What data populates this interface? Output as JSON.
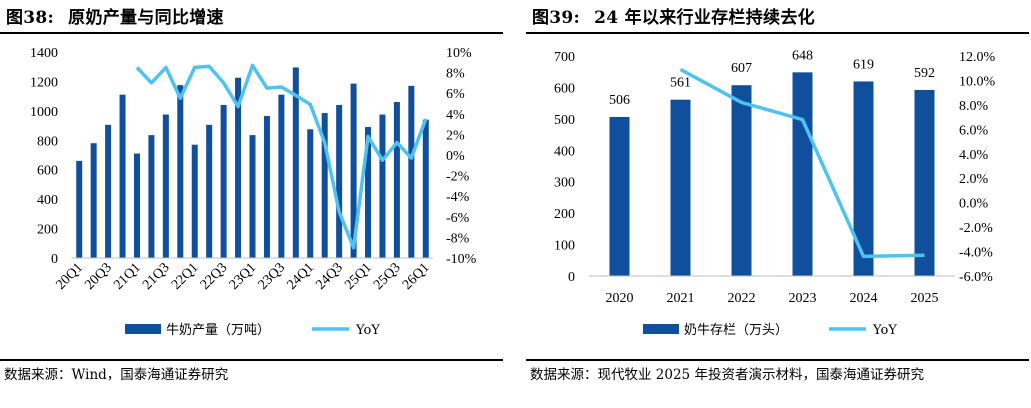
{
  "left": {
    "fig_num": "图38:",
    "title": "原奶产量与同比增速",
    "source": "数据来源：Wind，国泰海通证券研究",
    "legend_bar": "牛奶产量（万吨）",
    "legend_line": "YoY"
  },
  "right": {
    "fig_num": "图39:",
    "title": "24 年以来行业存栏持续去化",
    "source": "数据来源：现代牧业 2025 年投资者演示材料，国泰海通证券研究",
    "legend_bar": "奶牛存栏（万头）",
    "legend_line": "YoY"
  },
  "colors": {
    "bar": "#0f4f9c",
    "line": "#4fc3f0"
  },
  "chart_data": [
    {
      "type": "bar",
      "title": "原奶产量与同比增速",
      "x": [
        "20Q1",
        "20Q2",
        "20Q3",
        "20Q4",
        "21Q1",
        "21Q2",
        "21Q3",
        "21Q4",
        "22Q1",
        "22Q2",
        "22Q3",
        "22Q4",
        "23Q1",
        "23Q2",
        "23Q3",
        "23Q4",
        "24Q1",
        "24Q2",
        "24Q3",
        "24Q4",
        "25Q1",
        "25Q2",
        "25Q3",
        "25Q4",
        "26Q1"
      ],
      "x_tick_labels": [
        "20Q1",
        "20Q3",
        "21Q1",
        "21Q3",
        "22Q1",
        "22Q3",
        "23Q1",
        "23Q3",
        "24Q1",
        "24Q3",
        "25Q1",
        "25Q3",
        "26Q1"
      ],
      "series": [
        {
          "name": "牛奶产量（万吨）",
          "axis": "left",
          "values": [
            660,
            780,
            905,
            1110,
            710,
            835,
            975,
            1175,
            770,
            905,
            1040,
            1225,
            835,
            965,
            1110,
            1295,
            875,
            985,
            1040,
            1185,
            890,
            975,
            1060,
            1170,
            940
          ]
        },
        {
          "name": "YoY",
          "axis": "right",
          "unit": "%",
          "values": [
            null,
            null,
            null,
            null,
            8.5,
            7.0,
            8.5,
            5.5,
            8.5,
            8.6,
            7.0,
            4.7,
            8.7,
            6.5,
            6.6,
            5.8,
            4.9,
            1.2,
            -5.5,
            -9.0,
            1.8,
            -0.5,
            1.2,
            -0.3,
            3.5
          ]
        }
      ],
      "y_left": {
        "ylim": [
          0,
          1400
        ],
        "ticks": [
          0,
          200,
          400,
          600,
          800,
          1000,
          1200,
          1400
        ]
      },
      "y_right": {
        "ylim": [
          -10,
          10
        ],
        "ticks": [
          "10%",
          "8%",
          "6%",
          "4%",
          "2%",
          "0%",
          "-2%",
          "-4%",
          "-6%",
          "-8%",
          "-10%"
        ]
      },
      "legend": "bottom",
      "grid": false
    },
    {
      "type": "bar",
      "title": "24 年以来行业存栏持续去化",
      "x": [
        "2020",
        "2021",
        "2022",
        "2023",
        "2024",
        "2025"
      ],
      "series": [
        {
          "name": "奶牛存栏（万头）",
          "axis": "left",
          "values": [
            506,
            561,
            607,
            648,
            619,
            592
          ],
          "data_labels": [
            "506",
            "561",
            "607",
            "648",
            "619",
            "592"
          ]
        },
        {
          "name": "YoY",
          "axis": "right",
          "unit": "%",
          "values": [
            null,
            10.9,
            8.2,
            6.8,
            -4.4,
            -4.3
          ]
        }
      ],
      "y_left": {
        "ylim": [
          0,
          700
        ],
        "ticks": [
          0,
          100,
          200,
          300,
          400,
          500,
          600,
          700
        ]
      },
      "y_right": {
        "ylim": [
          -6,
          12
        ],
        "ticks": [
          "12.0%",
          "10.0%",
          "8.0%",
          "6.0%",
          "4.0%",
          "2.0%",
          "0.0%",
          "-2.0%",
          "-4.0%",
          "-6.0%"
        ]
      },
      "legend": "bottom",
      "grid": false
    }
  ]
}
